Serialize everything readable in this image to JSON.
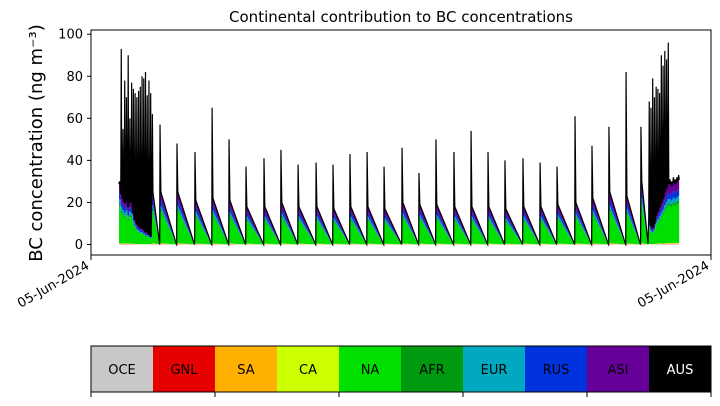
{
  "chart_data": {
    "type": "area",
    "title": "Continental contribution to BC concentrations",
    "ylabel": "BC concentration (ng m⁻³)",
    "xlabel": "",
    "x_unit": "time step",
    "xlim": [
      -1.62,
      34.22
    ],
    "ylim": [
      -5,
      102
    ],
    "yticks": [
      0,
      20,
      40,
      60,
      80,
      100
    ],
    "xtick_labels": [
      "05-Jun-2024",
      "05-Jun-2024"
    ],
    "grid": false,
    "layers": [
      {
        "name": "OCE",
        "color": "#c8c8c8",
        "fraction": 0.005
      },
      {
        "name": "GNL",
        "color": "#e60000",
        "fraction": 0.005
      },
      {
        "name": "SA",
        "color": "#ffb000",
        "fraction": 0.01
      },
      {
        "name": "CA",
        "color": "#ccff00",
        "fraction": 0.005
      },
      {
        "name": "NA",
        "color": "#00e000",
        "fraction": 0.61
      },
      {
        "name": "AFR",
        "color": "#009a10",
        "fraction": 0.04
      },
      {
        "name": "EUR",
        "color": "#00a8c0",
        "fraction": 0.07
      },
      {
        "name": "RUS",
        "color": "#0033dd",
        "fraction": 0.1
      },
      {
        "name": "ASI",
        "color": "#660099",
        "fraction": 0.155
      },
      {
        "name": "AUS",
        "color": "#000000",
        "fraction": null
      }
    ],
    "dense_start": {
      "x0": 0,
      "dx": 0.1,
      "total": [
        30,
        93,
        55,
        78,
        70,
        90,
        60,
        77,
        74,
        72,
        70,
        73,
        75,
        80,
        79,
        82,
        71,
        78,
        72,
        62
      ],
      "base": [
        29,
        24,
        22,
        20,
        22,
        18,
        21,
        20,
        15,
        12,
        10,
        9,
        8,
        8,
        7,
        6,
        6,
        5,
        4,
        25
      ]
    },
    "cycles": [
      {
        "x": 2.37,
        "peak": 57,
        "base": 25
      },
      {
        "x": 3.35,
        "peak": 48,
        "base": 25
      },
      {
        "x": 4.39,
        "peak": 44,
        "base": 21
      },
      {
        "x": 5.38,
        "peak": 65,
        "base": 22
      },
      {
        "x": 6.36,
        "peak": 50,
        "base": 21
      },
      {
        "x": 7.34,
        "peak": 37,
        "base": 18
      },
      {
        "x": 8.38,
        "peak": 41,
        "base": 18
      },
      {
        "x": 9.36,
        "peak": 45,
        "base": 20
      },
      {
        "x": 10.35,
        "peak": 38,
        "base": 18
      },
      {
        "x": 11.39,
        "peak": 39,
        "base": 18
      },
      {
        "x": 12.37,
        "peak": 38,
        "base": 17
      },
      {
        "x": 13.35,
        "peak": 43,
        "base": 18
      },
      {
        "x": 14.34,
        "peak": 44,
        "base": 18
      },
      {
        "x": 15.32,
        "peak": 37,
        "base": 17
      },
      {
        "x": 16.36,
        "peak": 46,
        "base": 20
      },
      {
        "x": 17.34,
        "peak": 34,
        "base": 19
      },
      {
        "x": 18.32,
        "peak": 50,
        "base": 19
      },
      {
        "x": 19.36,
        "peak": 44,
        "base": 18
      },
      {
        "x": 20.35,
        "peak": 54,
        "base": 18
      },
      {
        "x": 21.33,
        "peak": 44,
        "base": 18
      },
      {
        "x": 22.31,
        "peak": 40,
        "base": 17
      },
      {
        "x": 23.35,
        "peak": 41,
        "base": 18
      },
      {
        "x": 24.34,
        "peak": 39,
        "base": 18
      },
      {
        "x": 25.32,
        "peak": 37,
        "base": 19
      },
      {
        "x": 26.36,
        "peak": 61,
        "base": 20
      },
      {
        "x": 27.34,
        "peak": 47,
        "base": 22
      },
      {
        "x": 28.32,
        "peak": 56,
        "base": 25
      },
      {
        "x": 29.31,
        "peak": 82,
        "base": 23
      },
      {
        "x": 30.17,
        "peak": 56,
        "base": 30
      }
    ],
    "dense_end": {
      "x0": 30.62,
      "dx": 0.1,
      "total": [
        68,
        65,
        79,
        70,
        75,
        74,
        72,
        90,
        85,
        92,
        88,
        96,
        31,
        30,
        32,
        31,
        32,
        33
      ],
      "base": [
        12,
        9,
        8,
        10,
        14,
        16,
        18,
        20,
        22,
        25,
        27,
        29,
        29,
        28,
        30,
        29,
        30,
        31
      ]
    }
  }
}
